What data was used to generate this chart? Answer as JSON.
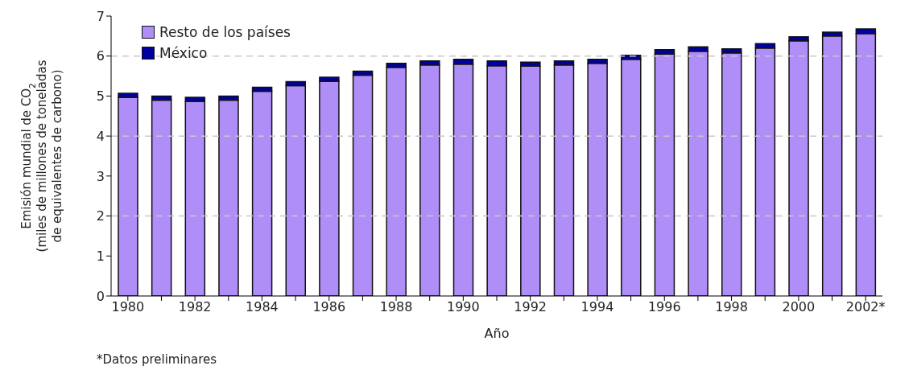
{
  "chart_data": {
    "type": "bar",
    "stacked": true,
    "xlabel": "Año",
    "ylabel": "Emisión mundial de CO$_{2}$\n(miles de millones de toneladas\nde equivalentes de carbono)",
    "categories": [
      "1980",
      null,
      "1982",
      null,
      "1984",
      null,
      "1986",
      null,
      "1988",
      null,
      "1990",
      null,
      "1992",
      null,
      "1994",
      null,
      "1996",
      null,
      "1998",
      null,
      "2000",
      null,
      "2002*"
    ],
    "series": [
      {
        "name": "Resto de los países",
        "color": "#b08ef8",
        "values": [
          4.97,
          4.9,
          4.87,
          4.9,
          5.12,
          5.26,
          5.37,
          5.52,
          5.72,
          5.78,
          5.8,
          5.76,
          5.75,
          5.78,
          5.82,
          5.92,
          6.05,
          6.12,
          6.08,
          6.2,
          6.38,
          6.5,
          6.56
        ]
      },
      {
        "name": "México",
        "color": "#0000a0",
        "values": [
          0.1,
          0.1,
          0.1,
          0.1,
          0.1,
          0.1,
          0.1,
          0.1,
          0.1,
          0.1,
          0.12,
          0.12,
          0.1,
          0.1,
          0.1,
          0.1,
          0.11,
          0.11,
          0.1,
          0.11,
          0.1,
          0.1,
          0.12
        ]
      }
    ],
    "ylim": [
      0,
      7
    ],
    "yticks": [
      0,
      1,
      2,
      3,
      4,
      5,
      6,
      7
    ],
    "ref_lines": [
      {
        "axis": "y",
        "value": 2,
        "color": "#c8c8c8",
        "line_style": "dashed"
      },
      {
        "axis": "y",
        "value": 4,
        "color": "#c8c8c8",
        "line_style": "dashed"
      },
      {
        "axis": "y",
        "value": 6,
        "color": "#c8c8c8",
        "line_style": "dashed"
      }
    ],
    "legend": "top left",
    "annotations": [
      "*Datos preliminares"
    ]
  }
}
